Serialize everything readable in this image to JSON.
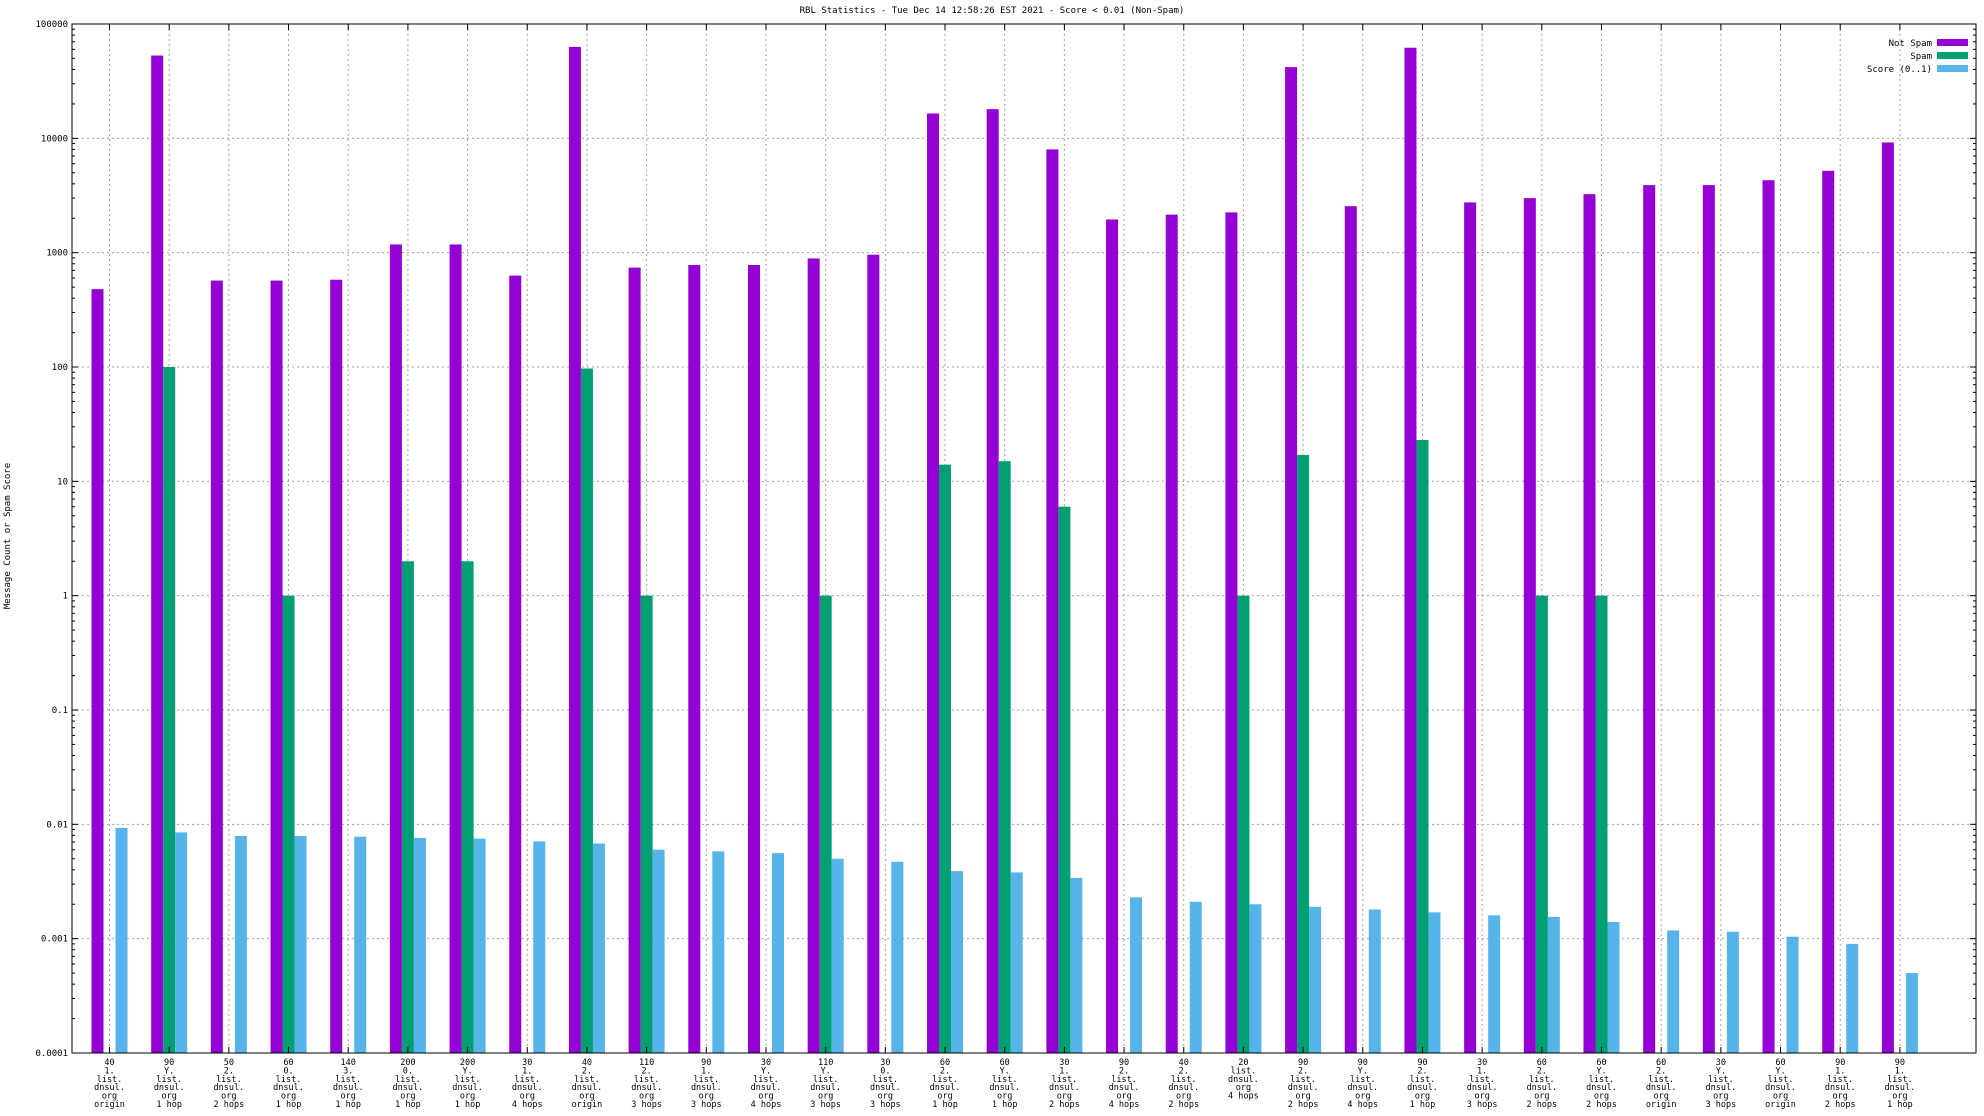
{
  "colors": {
    "not_spam": "#9400D3",
    "spam": "#009E73",
    "score": "#56B4E9",
    "grid": "#a0a0a0"
  },
  "chart_data": {
    "type": "bar",
    "title": "RBL Statistics - Tue Dec 14 12:58:26 EST 2021 - Score < 0.01 (Non-Spam)",
    "ylabel": "Message Count or Spam Score",
    "xlabel": "",
    "yscale": "log",
    "ylim": [
      0.0001,
      100000
    ],
    "grid": true,
    "legend_position": "top-right",
    "ytick_labels": [
      "100000",
      "10000",
      "1000",
      "100",
      "10",
      "1",
      "0.1",
      "0.01",
      "0.001",
      "0.0001"
    ],
    "ytick_values": [
      100000,
      10000,
      1000,
      100,
      10,
      1,
      0.1,
      0.01,
      0.001,
      0.0001
    ],
    "categories": [
      [
        "40",
        "1.",
        "list.",
        "dnsul.",
        "org",
        "origin"
      ],
      [
        "90",
        "Y.",
        "list.",
        "dnsul.",
        "org",
        "1 hop"
      ],
      [
        "50",
        "2.",
        "list.",
        "dnsul.",
        "org",
        "2 hops"
      ],
      [
        "60",
        "0.",
        "list.",
        "dnsul.",
        "org",
        "1 hop"
      ],
      [
        "140",
        "3.",
        "list.",
        "dnsul.",
        "org",
        "1 hop"
      ],
      [
        "200",
        "0.",
        "list.",
        "dnsul.",
        "org",
        "1 hop"
      ],
      [
        "200",
        "Y.",
        "list.",
        "dnsul.",
        "org",
        "1 hop"
      ],
      [
        "30",
        "1.",
        "list.",
        "dnsul.",
        "org",
        "4 hops"
      ],
      [
        "40",
        "2.",
        "list.",
        "dnsul.",
        "org",
        "origin"
      ],
      [
        "110",
        "2.",
        "list.",
        "dnsul.",
        "org",
        "3 hops"
      ],
      [
        "90",
        "1.",
        "list.",
        "dnsul.",
        "org",
        "3 hops"
      ],
      [
        "30",
        "Y.",
        "list.",
        "dnsul.",
        "org",
        "4 hops"
      ],
      [
        "110",
        "Y.",
        "list.",
        "dnsul.",
        "org",
        "3 hops"
      ],
      [
        "30",
        "0.",
        "list.",
        "dnsul.",
        "org",
        "3 hops"
      ],
      [
        "60",
        "2.",
        "list.",
        "dnsul.",
        "org",
        "1 hop"
      ],
      [
        "60",
        "Y.",
        "list.",
        "dnsul.",
        "org",
        "1 hop"
      ],
      [
        "30",
        "1.",
        "list.",
        "dnsul.",
        "org",
        "2 hops"
      ],
      [
        "90",
        "2.",
        "list.",
        "dnsul.",
        "org",
        "4 hops"
      ],
      [
        "40",
        "2.",
        "list.",
        "dnsul.",
        "org",
        "2 hops"
      ],
      [
        "20",
        "list.",
        "dnsul.",
        "org",
        "4 hops"
      ],
      [
        "90",
        "2.",
        "list.",
        "dnsul.",
        "org",
        "2 hops"
      ],
      [
        "90",
        "Y.",
        "list.",
        "dnsul.",
        "org",
        "4 hops"
      ],
      [
        "90",
        "2.",
        "list.",
        "dnsul.",
        "org",
        "1 hop"
      ],
      [
        "30",
        "1.",
        "list.",
        "dnsul.",
        "org",
        "3 hops"
      ],
      [
        "60",
        "2.",
        "list.",
        "dnsul.",
        "org",
        "2 hops"
      ],
      [
        "60",
        "Y.",
        "list.",
        "dnsul.",
        "org",
        "2 hops"
      ],
      [
        "60",
        "2.",
        "list.",
        "dnsul.",
        "org",
        "origin"
      ],
      [
        "30",
        "Y.",
        "list.",
        "dnsul.",
        "org",
        "3 hops"
      ],
      [
        "60",
        "Y.",
        "list.",
        "dnsul.",
        "org",
        "origin"
      ],
      [
        "90",
        "1.",
        "list.",
        "dnsul.",
        "org",
        "2 hops"
      ],
      [
        "90",
        "1.",
        "list.",
        "dnsul.",
        "org",
        "1 hop"
      ]
    ],
    "series": [
      {
        "name": "Not Spam",
        "values": [
          480,
          53000,
          570,
          570,
          580,
          1180,
          1180,
          630,
          63000,
          740,
          780,
          780,
          890,
          960,
          16500,
          18000,
          8000,
          1950,
          2150,
          2250,
          42000,
          2550,
          62000,
          2750,
          3000,
          3250,
          3900,
          3900,
          4300,
          5200,
          9200
        ]
      },
      {
        "name": "Spam",
        "values": [
          null,
          100,
          null,
          1,
          null,
          2,
          2,
          null,
          97,
          1,
          null,
          null,
          1,
          null,
          14,
          15,
          6,
          null,
          null,
          1,
          17,
          null,
          23,
          null,
          1,
          1,
          null,
          null,
          null,
          null,
          null
        ]
      },
      {
        "name": "Score (0..1)",
        "values": [
          0.0093,
          0.0085,
          0.0079,
          0.0079,
          0.0078,
          0.0076,
          0.0075,
          0.0071,
          0.0068,
          0.006,
          0.0058,
          0.0056,
          0.005,
          0.0047,
          0.0039,
          0.0038,
          0.0034,
          0.0023,
          0.0021,
          0.002,
          0.0019,
          0.0018,
          0.0017,
          0.0016,
          0.00155,
          0.0014,
          0.00118,
          0.00115,
          0.00104,
          0.0009,
          0.0005
        ]
      }
    ]
  }
}
